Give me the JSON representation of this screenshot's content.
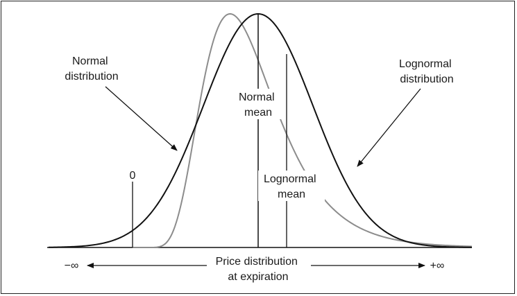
{
  "labels": {
    "normal_distribution": [
      "Normal",
      "distribution"
    ],
    "lognormal_distribution": [
      "Lognormal",
      "distribution"
    ],
    "normal_mean": [
      "Normal",
      "mean"
    ],
    "lognormal_mean": [
      "Lognormal",
      "mean"
    ],
    "zero": "0",
    "price_distribution": [
      "Price distribution",
      "at expiration"
    ],
    "minus_infinity": "−∞",
    "plus_infinity": "+∞"
  },
  "colors": {
    "normal_curve": "#111111",
    "lognormal_curve": "#8c8c8c",
    "axis": "#111111"
  }
}
